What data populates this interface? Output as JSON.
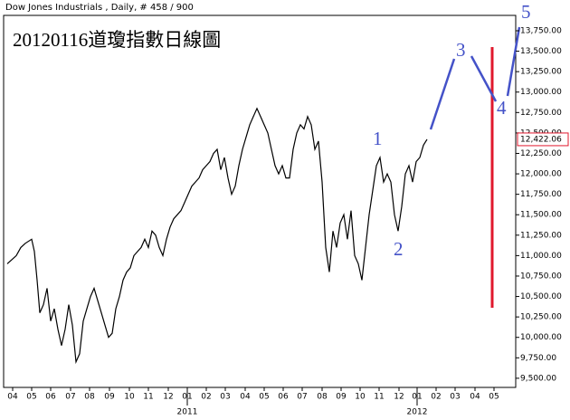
{
  "header": "Dow Jones Industrials , Daily, # 458 / 900",
  "chart_data": {
    "type": "line",
    "title": "20120116道瓊指數日線圖",
    "color": "#000000",
    "x": [
      0,
      5,
      10,
      15,
      20,
      27,
      30,
      33,
      36,
      40,
      44,
      48,
      52,
      56,
      60,
      64,
      68,
      72,
      76,
      80,
      84,
      88,
      92,
      96,
      100,
      104,
      108,
      112,
      116,
      120,
      124,
      128,
      132,
      136,
      140,
      144,
      148,
      152,
      156,
      160,
      164,
      168,
      172,
      176,
      180,
      184,
      188,
      192,
      196,
      200,
      204,
      208,
      212,
      216,
      220,
      224,
      228,
      232,
      236,
      240,
      244,
      248,
      252,
      256,
      260,
      264,
      268,
      272,
      276,
      280,
      284,
      288,
      292,
      296,
      300,
      304,
      308,
      312,
      316,
      320,
      324,
      328,
      332,
      336,
      340,
      344,
      348,
      352,
      356,
      360,
      364,
      368,
      372,
      376,
      380,
      384,
      388,
      392,
      396,
      400,
      404,
      408,
      412,
      416,
      420,
      424,
      428,
      432,
      436,
      440,
      444,
      448,
      452,
      456,
      460,
      464
    ],
    "values": [
      10900,
      10950,
      11000,
      11100,
      11150,
      11200,
      11050,
      10700,
      10300,
      10400,
      10600,
      10200,
      10350,
      10100,
      9900,
      10100,
      10400,
      10150,
      9700,
      9800,
      10200,
      10350,
      10500,
      10600,
      10450,
      10300,
      10150,
      10000,
      10050,
      10350,
      10500,
      10700,
      10800,
      10850,
      11000,
      11050,
      11100,
      11200,
      11100,
      11300,
      11250,
      11100,
      11000,
      11200,
      11350,
      11450,
      11500,
      11550,
      11650,
      11750,
      11850,
      11900,
      11950,
      12050,
      12100,
      12150,
      12250,
      12300,
      12050,
      12200,
      11950,
      11750,
      11850,
      12100,
      12300,
      12450,
      12600,
      12700,
      12800,
      12700,
      12600,
      12500,
      12300,
      12100,
      12000,
      12100,
      11950,
      11950,
      12300,
      12500,
      12600,
      12550,
      12700,
      12600,
      12300,
      12400,
      11900,
      11100,
      10800,
      11300,
      11100,
      11400,
      11500,
      11200,
      11550,
      11000,
      10900,
      10700,
      11100,
      11500,
      11800,
      12100,
      12200,
      11900,
      12000,
      11900,
      11500,
      11300,
      11600,
      12000,
      12100,
      11900,
      12150,
      12200,
      12350,
      12422.06
    ],
    "xlim": [
      0,
      562
    ],
    "xticks": [
      {
        "value": 6,
        "label": "04"
      },
      {
        "value": 27,
        "label": "05"
      },
      {
        "value": 48,
        "label": "06"
      },
      {
        "value": 70,
        "label": "07"
      },
      {
        "value": 91,
        "label": "08"
      },
      {
        "value": 113,
        "label": "09"
      },
      {
        "value": 135,
        "label": "10"
      },
      {
        "value": 156,
        "label": "11"
      },
      {
        "value": 178,
        "label": "12"
      },
      {
        "value": 199,
        "label": "01"
      },
      {
        "value": 220,
        "label": "02"
      },
      {
        "value": 241,
        "label": "03"
      },
      {
        "value": 263,
        "label": "04"
      },
      {
        "value": 284,
        "label": "05"
      },
      {
        "value": 305,
        "label": "06"
      },
      {
        "value": 326,
        "label": "07"
      },
      {
        "value": 348,
        "label": "08"
      },
      {
        "value": 369,
        "label": "09"
      },
      {
        "value": 390,
        "label": "10"
      },
      {
        "value": 411,
        "label": "11"
      },
      {
        "value": 433,
        "label": "12"
      },
      {
        "value": 453,
        "label": "01"
      },
      {
        "value": 474,
        "label": "02"
      },
      {
        "value": 495,
        "label": "03"
      },
      {
        "value": 517,
        "label": "04"
      },
      {
        "value": 538,
        "label": "05"
      }
    ],
    "year_labels": [
      {
        "value": 199,
        "label": "2011"
      },
      {
        "value": 453,
        "label": "2012"
      }
    ],
    "ylim": [
      9388,
      13938
    ],
    "yticks": [
      {
        "value": 9500,
        "label": "9,500.00"
      },
      {
        "value": 9750,
        "label": "9,750.00"
      },
      {
        "value": 10000,
        "label": "10,000.00"
      },
      {
        "value": 10250,
        "label": "10,250.00"
      },
      {
        "value": 10500,
        "label": "10,500.00"
      },
      {
        "value": 10750,
        "label": "10,750.00"
      },
      {
        "value": 11000,
        "label": "11,000.00"
      },
      {
        "value": 11250,
        "label": "11,250.00"
      },
      {
        "value": 11500,
        "label": "11,500.00"
      },
      {
        "value": 11750,
        "label": "11,750.00"
      },
      {
        "value": 12000,
        "label": "12,000.00"
      },
      {
        "value": 12250,
        "label": "12,250.00"
      },
      {
        "value": 12500,
        "label": "12,500.00"
      },
      {
        "value": 12750,
        "label": "12,750.00"
      },
      {
        "value": 13000,
        "label": "13,000.00"
      },
      {
        "value": 13250,
        "label": "13,250.00"
      },
      {
        "value": 13500,
        "label": "13,500.00"
      },
      {
        "value": 13750,
        "label": "13,750.00"
      }
    ],
    "last_value": {
      "value": 12422.06,
      "label": "12,422.06"
    },
    "wave_labels": [
      "1",
      "2",
      "3",
      "4",
      "5"
    ]
  }
}
